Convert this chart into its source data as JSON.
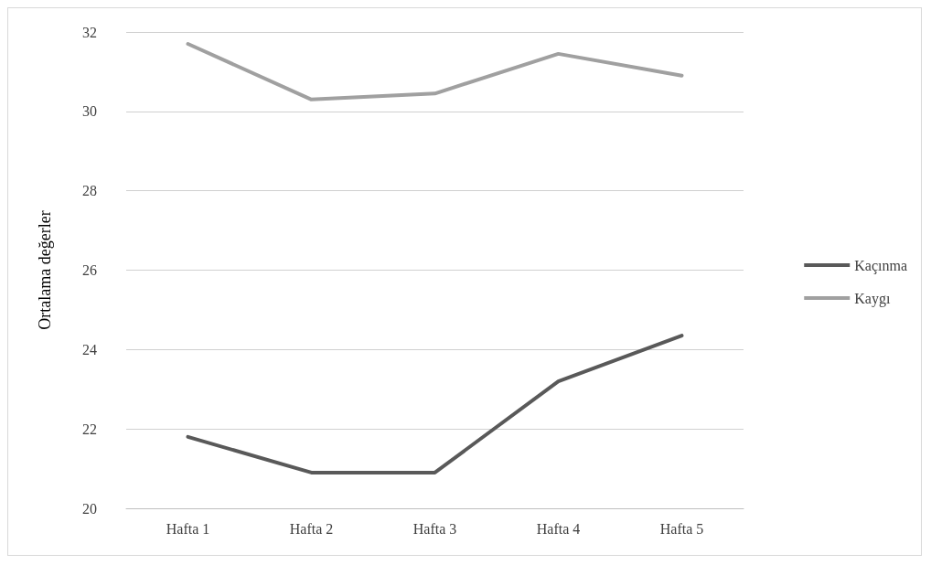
{
  "chart_data": {
    "type": "line",
    "ylabel": "Ortalama değerler",
    "categories": [
      "Hafta 1",
      "Hafta 2",
      "Hafta 3",
      "Hafta 4",
      "Hafta 5"
    ],
    "series": [
      {
        "name": "Kaçınma",
        "color": "#595959",
        "values": [
          21.8,
          20.9,
          20.9,
          23.2,
          24.35
        ]
      },
      {
        "name": "Kaygı",
        "color": "#a0a0a0",
        "values": [
          31.7,
          30.3,
          30.45,
          31.45,
          30.9
        ]
      }
    ],
    "ylim": [
      20,
      32
    ],
    "yticks": [
      20,
      22,
      24,
      26,
      28,
      30,
      32
    ],
    "grid": "y",
    "legend": "right",
    "marker": "none",
    "line_style": "solid"
  }
}
